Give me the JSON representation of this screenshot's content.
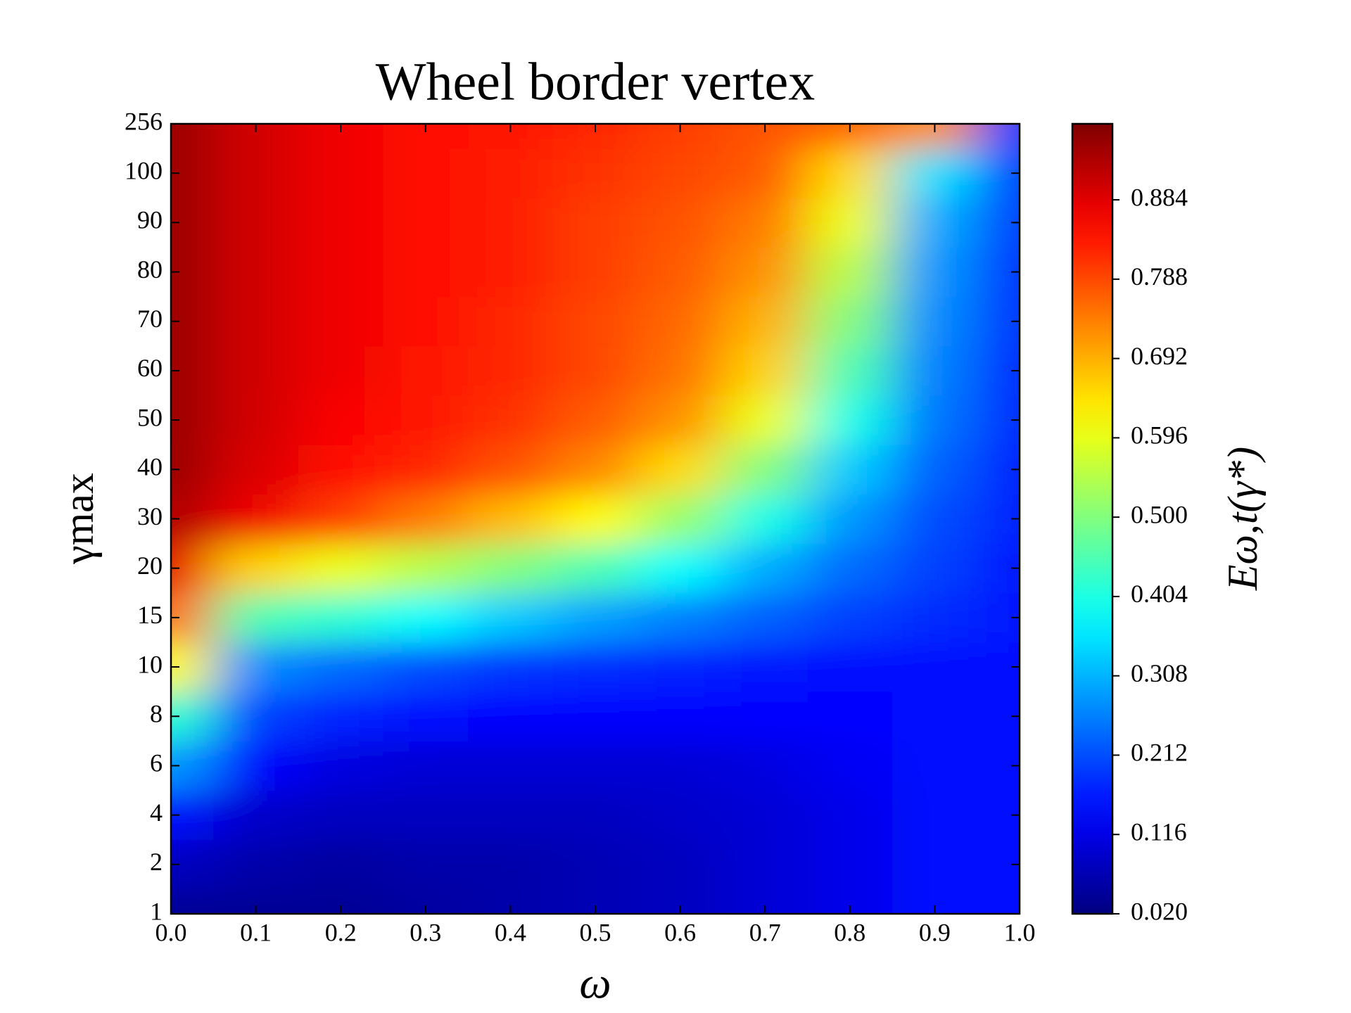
{
  "chart_data": {
    "type": "heatmap",
    "title": "Wheel border vertex",
    "x_label": "ω",
    "y_label": "γmax",
    "colorbar_label": "Eω,t(γ*)",
    "x": [
      0.0,
      0.1,
      0.2,
      0.3,
      0.4,
      0.5,
      0.6,
      0.7,
      0.8,
      0.9,
      1.0
    ],
    "xlim": [
      0,
      1
    ],
    "xticks": [
      {
        "value": 0,
        "label": "0.0"
      },
      0.1,
      0.2,
      0.3,
      0.4,
      0.5,
      0.6,
      0.7,
      0.8,
      0.9,
      {
        "value": 1,
        "label": "1.0"
      }
    ],
    "y_categories": [
      "1",
      "2",
      "4",
      "6",
      "8",
      "10",
      "15",
      "20",
      "30",
      "40",
      "50",
      "60",
      "70",
      "80",
      "90",
      "100",
      "256"
    ],
    "z": [
      [
        0.04,
        0.04,
        0.04,
        0.05,
        0.06,
        0.07,
        0.08,
        0.1,
        0.12,
        0.15,
        0.15
      ],
      [
        0.08,
        0.06,
        0.05,
        0.06,
        0.06,
        0.07,
        0.08,
        0.1,
        0.12,
        0.15,
        0.15
      ],
      [
        0.15,
        0.09,
        0.08,
        0.08,
        0.08,
        0.08,
        0.09,
        0.1,
        0.12,
        0.15,
        0.15
      ],
      [
        0.28,
        0.14,
        0.11,
        0.1,
        0.1,
        0.1,
        0.1,
        0.11,
        0.13,
        0.15,
        0.15
      ],
      [
        0.42,
        0.2,
        0.17,
        0.15,
        0.14,
        0.14,
        0.14,
        0.14,
        0.14,
        0.15,
        0.15
      ],
      [
        0.62,
        0.27,
        0.24,
        0.21,
        0.19,
        0.18,
        0.17,
        0.16,
        0.15,
        0.15,
        0.15
      ],
      [
        0.75,
        0.45,
        0.42,
        0.38,
        0.33,
        0.29,
        0.26,
        0.23,
        0.2,
        0.18,
        0.16
      ],
      [
        0.88,
        0.66,
        0.6,
        0.55,
        0.5,
        0.45,
        0.38,
        0.3,
        0.24,
        0.2,
        0.16
      ],
      [
        0.93,
        0.87,
        0.8,
        0.74,
        0.68,
        0.62,
        0.52,
        0.4,
        0.28,
        0.21,
        0.17
      ],
      [
        0.95,
        0.89,
        0.85,
        0.82,
        0.78,
        0.73,
        0.65,
        0.5,
        0.33,
        0.23,
        0.17
      ],
      [
        0.95,
        0.9,
        0.86,
        0.84,
        0.81,
        0.77,
        0.72,
        0.6,
        0.4,
        0.25,
        0.18
      ],
      [
        0.95,
        0.9,
        0.87,
        0.84,
        0.82,
        0.79,
        0.75,
        0.66,
        0.45,
        0.26,
        0.18
      ],
      [
        0.95,
        0.9,
        0.87,
        0.85,
        0.82,
        0.79,
        0.76,
        0.69,
        0.5,
        0.27,
        0.19
      ],
      [
        0.95,
        0.9,
        0.87,
        0.85,
        0.83,
        0.8,
        0.77,
        0.72,
        0.55,
        0.28,
        0.19
      ],
      [
        0.95,
        0.9,
        0.87,
        0.85,
        0.83,
        0.8,
        0.78,
        0.74,
        0.6,
        0.3,
        0.2
      ],
      [
        0.95,
        0.9,
        0.87,
        0.85,
        0.83,
        0.81,
        0.79,
        0.77,
        0.65,
        0.35,
        0.2
      ],
      [
        0.95,
        0.9,
        0.87,
        0.85,
        0.84,
        0.82,
        0.8,
        0.78,
        0.76,
        0.72,
        0.2
      ]
    ],
    "colormap": "jet",
    "clim": [
      0.02,
      0.976
    ],
    "cticks": [
      {
        "value": 0.02,
        "label": "0.020"
      },
      0.116,
      0.212,
      0.308,
      0.404,
      {
        "value": 0.5,
        "label": "0.500"
      },
      0.596,
      0.692,
      0.788,
      0.884
    ]
  }
}
